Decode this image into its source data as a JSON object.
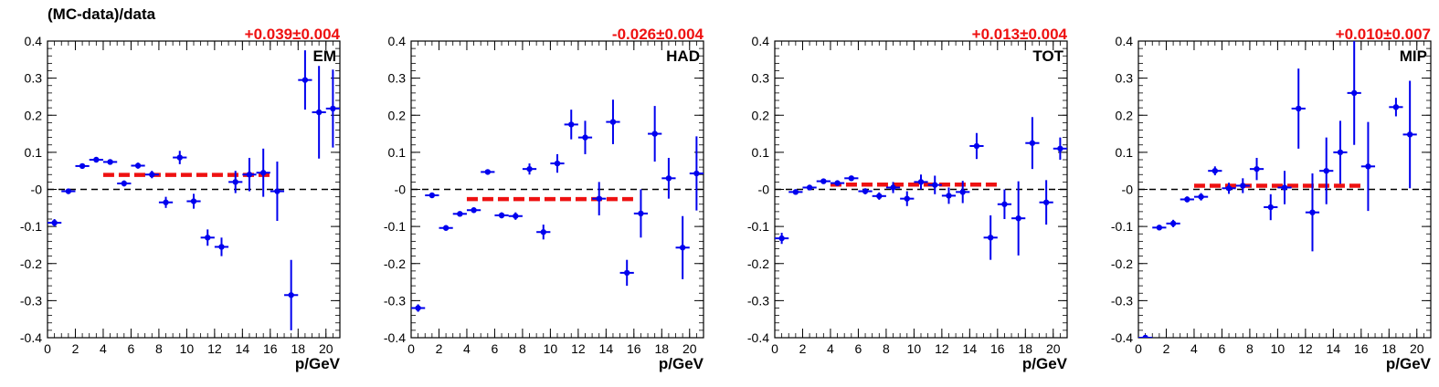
{
  "figure_title": "(MC-data)/data",
  "colors": {
    "points": "#0000ee",
    "fit": "#ee1111",
    "axis": "#000000",
    "zero_line": "#000000"
  },
  "chart_data": [
    {
      "type": "scatter",
      "panel_label": "EM",
      "annotation": "+0.039±0.004",
      "xlabel": "p/GeV",
      "ylabel": "",
      "xlim": [
        0,
        21
      ],
      "ylim": [
        -0.4,
        0.4
      ],
      "x_ticks": [
        "0",
        "2",
        "4",
        "6",
        "8",
        "10",
        "12",
        "14",
        "16",
        "18",
        "20"
      ],
      "y_ticks": [
        "-0.4",
        "-0.3",
        "-0.2",
        "-0.1",
        "-0",
        "0.1",
        "0.2",
        "0.3",
        "0.4"
      ],
      "fit": {
        "x_range": [
          4,
          16
        ],
        "value": 0.039
      },
      "points": [
        {
          "x": 0.5,
          "y": -0.09,
          "err": 0.01
        },
        {
          "x": 1.5,
          "y": -0.005,
          "err": 0.005
        },
        {
          "x": 2.5,
          "y": 0.063,
          "err": 0.005
        },
        {
          "x": 3.5,
          "y": 0.08,
          "err": 0.005
        },
        {
          "x": 4.5,
          "y": 0.074,
          "err": 0.006
        },
        {
          "x": 5.5,
          "y": 0.016,
          "err": 0.008
        },
        {
          "x": 6.5,
          "y": 0.064,
          "err": 0.008
        },
        {
          "x": 7.5,
          "y": 0.04,
          "err": 0.01
        },
        {
          "x": 8.5,
          "y": -0.035,
          "err": 0.015
        },
        {
          "x": 9.5,
          "y": 0.086,
          "err": 0.018
        },
        {
          "x": 10.5,
          "y": -0.032,
          "err": 0.02
        },
        {
          "x": 11.5,
          "y": -0.13,
          "err": 0.022
        },
        {
          "x": 12.5,
          "y": -0.155,
          "err": 0.025
        },
        {
          "x": 13.5,
          "y": 0.02,
          "err": 0.03
        },
        {
          "x": 14.5,
          "y": 0.04,
          "err": 0.045
        },
        {
          "x": 15.5,
          "y": 0.045,
          "err": 0.065
        },
        {
          "x": 16.5,
          "y": -0.005,
          "err": 0.08
        },
        {
          "x": 17.5,
          "y": -0.285,
          "err": 0.095
        },
        {
          "x": 18.5,
          "y": 0.295,
          "err": 0.08
        },
        {
          "x": 19.5,
          "y": 0.208,
          "err": 0.125
        },
        {
          "x": 20.5,
          "y": 0.218,
          "err": 0.105
        }
      ]
    },
    {
      "type": "scatter",
      "panel_label": "HAD",
      "annotation": "-0.026±0.004",
      "xlabel": "p/GeV",
      "ylabel": "",
      "xlim": [
        0,
        21
      ],
      "ylim": [
        -0.4,
        0.4
      ],
      "x_ticks": [
        "0",
        "2",
        "4",
        "6",
        "8",
        "10",
        "12",
        "14",
        "16",
        "18",
        "20"
      ],
      "y_ticks": [
        "-0.4",
        "-0.3",
        "-0.2",
        "-0.1",
        "-0",
        "0.1",
        "0.2",
        "0.3",
        "0.4"
      ],
      "fit": {
        "x_range": [
          4,
          16
        ],
        "value": -0.026
      },
      "points": [
        {
          "x": 0.5,
          "y": -0.32,
          "err": 0.01
        },
        {
          "x": 1.5,
          "y": -0.016,
          "err": 0.005
        },
        {
          "x": 2.5,
          "y": -0.104,
          "err": 0.005
        },
        {
          "x": 3.5,
          "y": -0.066,
          "err": 0.005
        },
        {
          "x": 4.5,
          "y": -0.056,
          "err": 0.005
        },
        {
          "x": 5.5,
          "y": 0.047,
          "err": 0.006
        },
        {
          "x": 6.5,
          "y": -0.07,
          "err": 0.008
        },
        {
          "x": 7.5,
          "y": -0.072,
          "err": 0.01
        },
        {
          "x": 8.5,
          "y": 0.055,
          "err": 0.015
        },
        {
          "x": 9.5,
          "y": -0.115,
          "err": 0.02
        },
        {
          "x": 10.5,
          "y": 0.07,
          "err": 0.025
        },
        {
          "x": 11.5,
          "y": 0.175,
          "err": 0.04
        },
        {
          "x": 12.5,
          "y": 0.14,
          "err": 0.045
        },
        {
          "x": 13.5,
          "y": -0.025,
          "err": 0.045
        },
        {
          "x": 14.5,
          "y": 0.182,
          "err": 0.06
        },
        {
          "x": 15.5,
          "y": -0.225,
          "err": 0.035
        },
        {
          "x": 16.5,
          "y": -0.065,
          "err": 0.065
        },
        {
          "x": 17.5,
          "y": 0.15,
          "err": 0.075
        },
        {
          "x": 18.5,
          "y": 0.03,
          "err": 0.055
        },
        {
          "x": 19.5,
          "y": -0.157,
          "err": 0.085
        },
        {
          "x": 20.5,
          "y": 0.043,
          "err": 0.1
        }
      ]
    },
    {
      "type": "scatter",
      "panel_label": "TOT",
      "annotation": "+0.013±0.004",
      "xlabel": "p/GeV",
      "ylabel": "",
      "xlim": [
        0,
        21
      ],
      "ylim": [
        -0.4,
        0.4
      ],
      "x_ticks": [
        "0",
        "2",
        "4",
        "6",
        "8",
        "10",
        "12",
        "14",
        "16",
        "18",
        "20"
      ],
      "y_ticks": [
        "-0.4",
        "-0.3",
        "-0.2",
        "-0.1",
        "-0",
        "0.1",
        "0.2",
        "0.3",
        "0.4"
      ],
      "fit": {
        "x_range": [
          4,
          16
        ],
        "value": 0.013
      },
      "points": [
        {
          "x": 0.5,
          "y": -0.132,
          "err": 0.015
        },
        {
          "x": 1.5,
          "y": -0.007,
          "err": 0.006
        },
        {
          "x": 2.5,
          "y": 0.005,
          "err": 0.005
        },
        {
          "x": 3.5,
          "y": 0.022,
          "err": 0.005
        },
        {
          "x": 4.5,
          "y": 0.017,
          "err": 0.005
        },
        {
          "x": 5.5,
          "y": 0.03,
          "err": 0.006
        },
        {
          "x": 6.5,
          "y": -0.005,
          "err": 0.008
        },
        {
          "x": 7.5,
          "y": -0.018,
          "err": 0.01
        },
        {
          "x": 8.5,
          "y": 0.005,
          "err": 0.015
        },
        {
          "x": 9.5,
          "y": -0.025,
          "err": 0.02
        },
        {
          "x": 10.5,
          "y": 0.02,
          "err": 0.02
        },
        {
          "x": 11.5,
          "y": 0.012,
          "err": 0.025
        },
        {
          "x": 12.5,
          "y": -0.017,
          "err": 0.022
        },
        {
          "x": 13.5,
          "y": -0.007,
          "err": 0.03
        },
        {
          "x": 14.5,
          "y": 0.117,
          "err": 0.035
        },
        {
          "x": 15.5,
          "y": -0.13,
          "err": 0.06
        },
        {
          "x": 16.5,
          "y": -0.04,
          "err": 0.04
        },
        {
          "x": 17.5,
          "y": -0.078,
          "err": 0.1
        },
        {
          "x": 18.5,
          "y": 0.125,
          "err": 0.07
        },
        {
          "x": 19.5,
          "y": -0.035,
          "err": 0.06
        },
        {
          "x": 20.5,
          "y": 0.11,
          "err": 0.03
        }
      ]
    },
    {
      "type": "scatter",
      "panel_label": "MIP",
      "annotation": "+0.010±0.007",
      "xlabel": "p/GeV",
      "ylabel": "",
      "xlim": [
        0,
        21
      ],
      "ylim": [
        -0.4,
        0.4
      ],
      "x_ticks": [
        "0",
        "2",
        "4",
        "6",
        "8",
        "10",
        "12",
        "14",
        "16",
        "18",
        "20"
      ],
      "y_ticks": [
        "-0.4",
        "-0.3",
        "-0.2",
        "-0.1",
        "-0",
        "0.1",
        "0.2",
        "0.3",
        "0.4"
      ],
      "fit": {
        "x_range": [
          4,
          16
        ],
        "value": 0.01
      },
      "points": [
        {
          "x": 0.5,
          "y": -0.4,
          "err": 0.005
        },
        {
          "x": 1.5,
          "y": -0.103,
          "err": 0.005
        },
        {
          "x": 2.5,
          "y": -0.092,
          "err": 0.01
        },
        {
          "x": 3.5,
          "y": -0.027,
          "err": 0.008
        },
        {
          "x": 4.5,
          "y": -0.02,
          "err": 0.01
        },
        {
          "x": 5.5,
          "y": 0.05,
          "err": 0.012
        },
        {
          "x": 6.5,
          "y": 0.003,
          "err": 0.015
        },
        {
          "x": 7.5,
          "y": 0.01,
          "err": 0.02
        },
        {
          "x": 8.5,
          "y": 0.055,
          "err": 0.03
        },
        {
          "x": 9.5,
          "y": -0.048,
          "err": 0.035
        },
        {
          "x": 10.5,
          "y": 0.005,
          "err": 0.045
        },
        {
          "x": 11.5,
          "y": 0.218,
          "err": 0.108
        },
        {
          "x": 12.5,
          "y": -0.062,
          "err": 0.105
        },
        {
          "x": 13.5,
          "y": 0.05,
          "err": 0.09
        },
        {
          "x": 14.5,
          "y": 0.1,
          "err": 0.085
        },
        {
          "x": 15.5,
          "y": 0.26,
          "err": 0.14
        },
        {
          "x": 16.5,
          "y": 0.062,
          "err": 0.12
        },
        {
          "x": 18.5,
          "y": 0.222,
          "err": 0.025
        },
        {
          "x": 19.5,
          "y": 0.148,
          "err": 0.145
        }
      ]
    }
  ]
}
